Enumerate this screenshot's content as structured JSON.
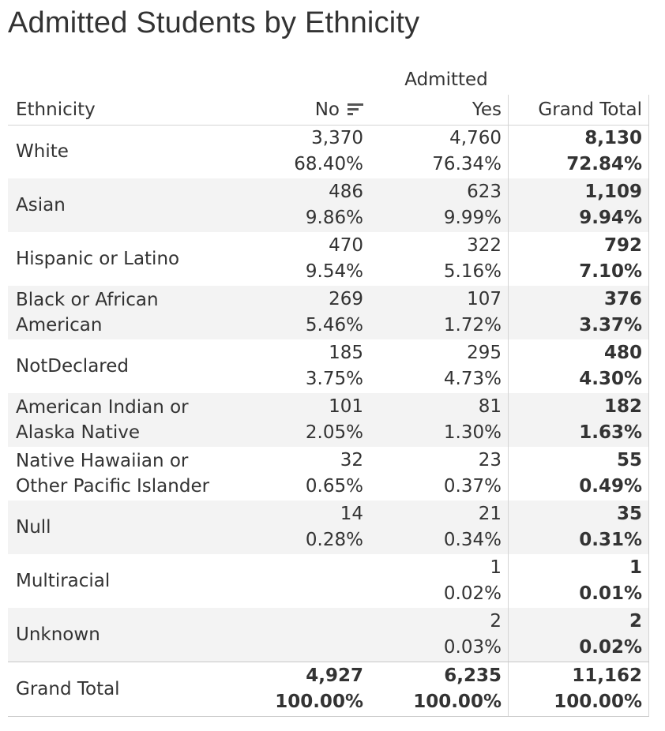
{
  "title": "Admitted Students by Ethnicity",
  "column_group": "Admitted",
  "headers": {
    "ethnicity": "Ethnicity",
    "no": "No",
    "yes": "Yes",
    "grand_total": "Grand Total"
  },
  "sort_icon": "sort-descending-icon",
  "colors": {
    "row_shade": "#f3f3f3",
    "text": "#333333",
    "rule": "#d4d4d4"
  },
  "chart_data": {
    "type": "table",
    "title": "Admitted Students by Ethnicity",
    "columns": [
      "Ethnicity",
      "No",
      "Yes",
      "Grand Total"
    ],
    "rows": [
      {
        "label": "White",
        "no": "3,370",
        "no_pct": "68.40%",
        "yes": "4,760",
        "yes_pct": "76.34%",
        "total": "8,130",
        "total_pct": "72.84%"
      },
      {
        "label": "Asian",
        "no": "486",
        "no_pct": "9.86%",
        "yes": "623",
        "yes_pct": "9.99%",
        "total": "1,109",
        "total_pct": "9.94%"
      },
      {
        "label": "Hispanic or Latino",
        "no": "470",
        "no_pct": "9.54%",
        "yes": "322",
        "yes_pct": "5.16%",
        "total": "792",
        "total_pct": "7.10%"
      },
      {
        "label": "Black or African American",
        "no": "269",
        "no_pct": "5.46%",
        "yes": "107",
        "yes_pct": "1.72%",
        "total": "376",
        "total_pct": "3.37%"
      },
      {
        "label": "NotDeclared",
        "no": "185",
        "no_pct": "3.75%",
        "yes": "295",
        "yes_pct": "4.73%",
        "total": "480",
        "total_pct": "4.30%"
      },
      {
        "label": "American Indian or Alaska Native",
        "no": "101",
        "no_pct": "2.05%",
        "yes": "81",
        "yes_pct": "1.30%",
        "total": "182",
        "total_pct": "1.63%"
      },
      {
        "label": "Native Hawaiian or Other Pacific Islander",
        "no": "32",
        "no_pct": "0.65%",
        "yes": "23",
        "yes_pct": "0.37%",
        "total": "55",
        "total_pct": "0.49%"
      },
      {
        "label": "Null",
        "no": "14",
        "no_pct": "0.28%",
        "yes": "21",
        "yes_pct": "0.34%",
        "total": "35",
        "total_pct": "0.31%"
      },
      {
        "label": "Multiracial",
        "no": "",
        "no_pct": "",
        "yes": "1",
        "yes_pct": "0.02%",
        "total": "1",
        "total_pct": "0.01%"
      },
      {
        "label": "Unknown",
        "no": "",
        "no_pct": "",
        "yes": "2",
        "yes_pct": "0.03%",
        "total": "2",
        "total_pct": "0.02%"
      }
    ],
    "grand_total": {
      "label": "Grand Total",
      "no": "4,927",
      "no_pct": "100.00%",
      "yes": "6,235",
      "yes_pct": "100.00%",
      "total": "11,162",
      "total_pct": "100.00%"
    }
  }
}
